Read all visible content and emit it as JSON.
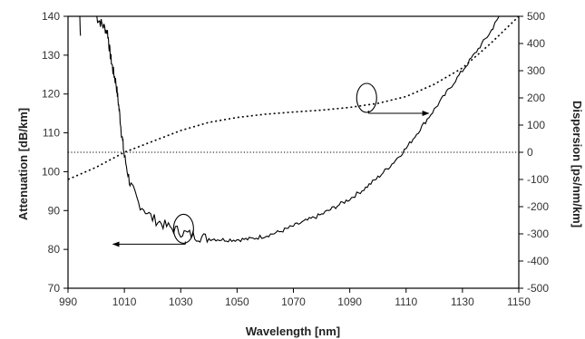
{
  "chart_data": {
    "type": "line",
    "title": "",
    "xlabel": "Wavelength [nm]",
    "ylabel_left": "Attenuation [dB/km]",
    "ylabel_right": "Dispersion [ps/nm/km]",
    "xlim": [
      990,
      1150
    ],
    "ylim_left": [
      70,
      140
    ],
    "ylim_right": [
      -500,
      500
    ],
    "x_ticks": [
      "990",
      "1010",
      "1030",
      "1050",
      "1070",
      "1090",
      "1110",
      "1130",
      "1150"
    ],
    "y_left_ticks": [
      "70",
      "80",
      "90",
      "100",
      "110",
      "120",
      "130",
      "140"
    ],
    "y_right_ticks": [
      "-500",
      "-400",
      "-300",
      "-200",
      "-100",
      "0",
      "100",
      "200",
      "300",
      "400",
      "500"
    ],
    "grid": false,
    "legend": "none",
    "series": [
      {
        "axis": "left",
        "style": "solid",
        "color": "#000000",
        "x": [
          1000,
          1002,
          1004,
          1005,
          1006,
          1007,
          1008,
          1009,
          1010,
          1012,
          1015,
          1020,
          1025,
          1030,
          1035,
          1040,
          1045,
          1050,
          1055,
          1060,
          1065,
          1070,
          1075,
          1080,
          1085,
          1090,
          1095,
          1100,
          1105,
          1110,
          1115,
          1120,
          1125,
          1130,
          1135,
          1140,
          1143
        ],
        "y": [
          140,
          138,
          136,
          130,
          126,
          123,
          117,
          110,
          104,
          97,
          92,
          88,
          86,
          84.5,
          83.5,
          82.8,
          82.5,
          82.5,
          82.7,
          83.5,
          84.5,
          86,
          87.5,
          89,
          91,
          93,
          95.5,
          98.5,
          102,
          106,
          111,
          116,
          121,
          126,
          131,
          136,
          140
        ]
      },
      {
        "axis": "right",
        "style": "dotted",
        "color": "#000000",
        "x": [
          990,
          1000,
          1010,
          1020,
          1030,
          1040,
          1050,
          1060,
          1070,
          1080,
          1090,
          1100,
          1110,
          1120,
          1130,
          1140,
          1150
        ],
        "y": [
          -100,
          -55,
          0,
          40,
          80,
          110,
          128,
          140,
          148,
          155,
          165,
          180,
          205,
          250,
          310,
          400,
          500
        ]
      },
      {
        "role": "minimum-fragment",
        "axis": "left",
        "style": "solid",
        "color": "#000000",
        "x": [
          994.2,
          994.3,
          994.4
        ],
        "y": [
          140,
          136.5,
          135
        ]
      }
    ],
    "reference_lines": [
      {
        "axis": "right",
        "y": 0,
        "style": "dotted"
      }
    ],
    "annotations": [
      {
        "type": "ellipse",
        "x": 1031,
        "axis": "left",
        "y": 85.3,
        "points_to": "left",
        "arrow_to_x": 1006
      },
      {
        "type": "ellipse",
        "x": 1096,
        "axis": "right",
        "y": 200,
        "points_to": "right",
        "arrow_to_x": 1118
      }
    ]
  }
}
